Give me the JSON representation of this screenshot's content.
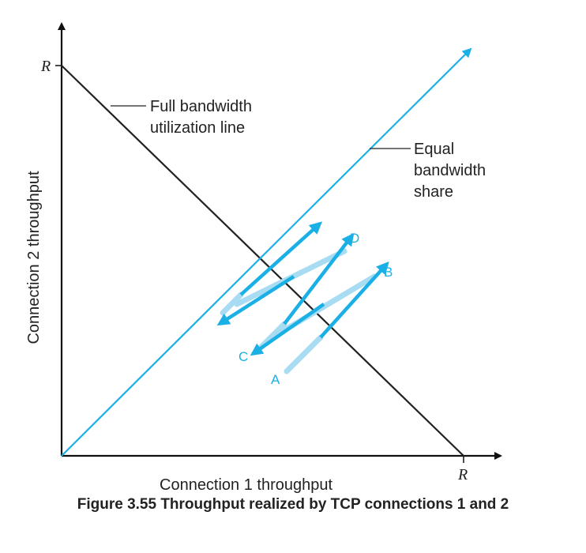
{
  "axes": {
    "x_label": "Connection 1 throughput",
    "y_label": "Connection 2 throughput",
    "x_max_label": "R",
    "y_max_label": "R"
  },
  "annotations": {
    "full_bandwidth": [
      "Full bandwidth",
      "utilization line"
    ],
    "equal_share": [
      "Equal",
      "bandwidth",
      "share"
    ]
  },
  "points": {
    "a": "A",
    "b": "B",
    "c": "C",
    "d": "D"
  },
  "caption": "Figure 3.55 Throughput realized by TCP connections 1 and 2",
  "colors": {
    "axis": "#111111",
    "full_line": "#222222",
    "equal_line": "#1ab0e6",
    "arrow_dark": "#1ab0e6",
    "arrow_light": "#a7dcf3"
  }
}
